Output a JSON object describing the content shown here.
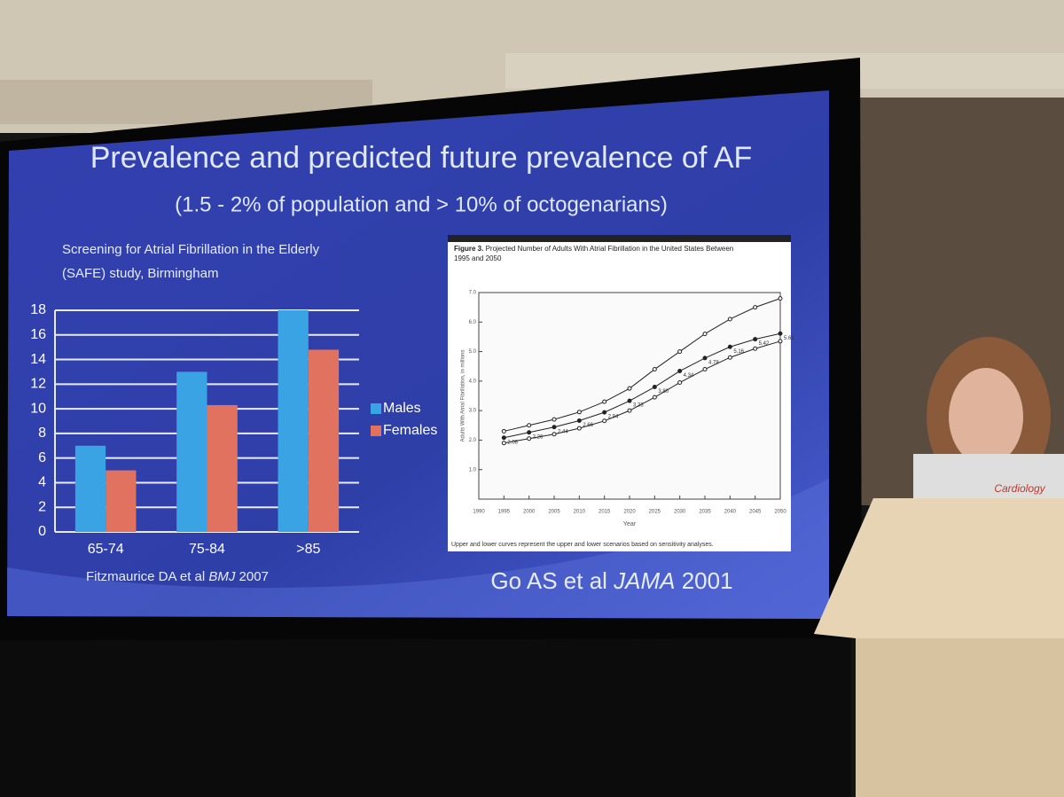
{
  "slide": {
    "title": "Prevalence and predicted future prevalence of AF",
    "subtitle": "(1.5 - 2% of population and > 10% of octogenarians)",
    "laptop_label": "Cardiology"
  },
  "chart_data": [
    {
      "type": "bar",
      "title": [
        "Screening for Atrial Fibrillation in the Elderly",
        "(SAFE) study, Birmingham"
      ],
      "categories": [
        "65-74",
        "75-84",
        ">85"
      ],
      "series": [
        {
          "name": "Males",
          "color": "#3aa3e3",
          "values": [
            7,
            13,
            18
          ]
        },
        {
          "name": "Females",
          "color": "#e0725f",
          "values": [
            5,
            10.3,
            14.8
          ]
        }
      ],
      "ylim": [
        0,
        18
      ],
      "yticks": [
        0,
        2,
        4,
        6,
        8,
        10,
        12,
        14,
        16,
        18
      ],
      "grid": true,
      "legend": "right",
      "source": [
        "Fitzmaurice DA et al ",
        "BMJ",
        " 2007"
      ]
    },
    {
      "type": "line",
      "title": [
        "Figure 3.",
        " Projected Number of Adults With Atrial Fibrillation in the United States Between",
        "1995 and 2050"
      ],
      "x": [
        1995,
        2000,
        2005,
        2010,
        2015,
        2020,
        2025,
        2030,
        2035,
        2040,
        2045,
        2050
      ],
      "series": [
        {
          "color": "#222222",
          "values": [
            2.3,
            2.5,
            2.7,
            2.95,
            3.3,
            3.75,
            4.4,
            5.0,
            5.6,
            6.1,
            6.5,
            6.8
          ]
        },
        {
          "color": "#222222",
          "values": [
            2.08,
            2.26,
            2.44,
            2.66,
            2.94,
            3.33,
            3.8,
            4.34,
            4.78,
            5.16,
            5.42,
            5.61
          ],
          "value_labels": [
            "2.08",
            "2.26",
            "2.44",
            "2.66",
            "2.94",
            "3.33",
            "3.80",
            "4.34",
            "4.78",
            "5.16",
            "5.42",
            "5.61"
          ]
        },
        {
          "color": "#222222",
          "values": [
            1.9,
            2.05,
            2.2,
            2.4,
            2.65,
            3.0,
            3.45,
            3.95,
            4.4,
            4.8,
            5.1,
            5.35
          ]
        }
      ],
      "xlim": [
        1990,
        2050
      ],
      "xticks": [
        1990,
        1995,
        2000,
        2005,
        2010,
        2015,
        2020,
        2025,
        2030,
        2035,
        2040,
        2045,
        2050
      ],
      "ylim": [
        0,
        7
      ],
      "yticks": [
        {
          "value": 1,
          "label": "1.0"
        },
        {
          "value": 2,
          "label": "2.0"
        },
        {
          "value": 3,
          "label": "3.0"
        },
        {
          "value": 4,
          "label": "4.0"
        },
        {
          "value": 5,
          "label": "5.0"
        },
        {
          "value": 6,
          "label": "6.0"
        },
        {
          "value": 7,
          "label": "7.0"
        }
      ],
      "xlabel": "Year",
      "ylabel": "Adults With Atrial Fibrillation, in millions",
      "note": "Upper and lower curves represent the upper and lower scenarios based on sensitivity analyses.",
      "source": [
        "Go AS et al ",
        "JAMA",
        " 2001"
      ]
    }
  ]
}
